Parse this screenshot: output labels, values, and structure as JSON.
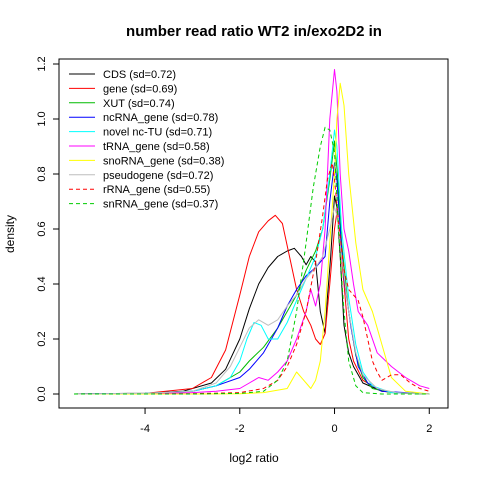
{
  "chart_data": {
    "type": "line",
    "title": "number read ratio WT2 in/exo2D2 in",
    "xlabel": "log2 ratio",
    "ylabel": "density",
    "xlim": [
      -5.5,
      2.1
    ],
    "ylim": [
      0,
      1.22
    ],
    "xticks": [
      -4,
      -2,
      0,
      2
    ],
    "yticks": [
      0.0,
      0.2,
      0.4,
      0.6,
      0.8,
      1.0,
      1.2
    ],
    "xtick_labels": [
      "-4",
      "-2",
      "0",
      "2"
    ],
    "ytick_labels": [
      "0.0",
      "0.2",
      "0.4",
      "0.6",
      "0.8",
      "1.0",
      "1.2"
    ],
    "grid": false,
    "legend_position": "top-left",
    "series": [
      {
        "name": "CDS (sd=0.72)",
        "color": "#000000",
        "dash": "solid",
        "points": [
          [
            -5.5,
            0
          ],
          [
            -4,
            0.003
          ],
          [
            -3.2,
            0.01
          ],
          [
            -2.6,
            0.04
          ],
          [
            -2.3,
            0.09
          ],
          [
            -2.0,
            0.2
          ],
          [
            -1.8,
            0.31
          ],
          [
            -1.6,
            0.4
          ],
          [
            -1.4,
            0.46
          ],
          [
            -1.2,
            0.5
          ],
          [
            -1.0,
            0.52
          ],
          [
            -0.85,
            0.53
          ],
          [
            -0.7,
            0.5
          ],
          [
            -0.6,
            0.47
          ],
          [
            -0.5,
            0.5
          ],
          [
            -0.4,
            0.48
          ],
          [
            -0.3,
            0.3
          ],
          [
            -0.2,
            0.22
          ],
          [
            -0.15,
            0.35
          ],
          [
            -0.08,
            0.5
          ],
          [
            0.0,
            0.72
          ],
          [
            0.05,
            0.68
          ],
          [
            0.12,
            0.5
          ],
          [
            0.2,
            0.25
          ],
          [
            0.3,
            0.15
          ],
          [
            0.4,
            0.1
          ],
          [
            0.6,
            0.04
          ],
          [
            1.0,
            0.01
          ],
          [
            1.5,
            0.003
          ],
          [
            2.0,
            0
          ]
        ]
      },
      {
        "name": "gene (sd=0.69)",
        "color": "#ff0000",
        "dash": "solid",
        "points": [
          [
            -5.5,
            0
          ],
          [
            -4,
            0.002
          ],
          [
            -3,
            0.02
          ],
          [
            -2.6,
            0.06
          ],
          [
            -2.3,
            0.16
          ],
          [
            -2.0,
            0.36
          ],
          [
            -1.8,
            0.5
          ],
          [
            -1.6,
            0.59
          ],
          [
            -1.4,
            0.63
          ],
          [
            -1.25,
            0.65
          ],
          [
            -1.1,
            0.62
          ],
          [
            -0.95,
            0.5
          ],
          [
            -0.8,
            0.38
          ],
          [
            -0.65,
            0.3
          ],
          [
            -0.5,
            0.25
          ],
          [
            -0.4,
            0.2
          ],
          [
            -0.3,
            0.18
          ],
          [
            -0.2,
            0.22
          ],
          [
            -0.1,
            0.4
          ],
          [
            0.0,
            0.6
          ],
          [
            0.05,
            0.66
          ],
          [
            0.12,
            0.55
          ],
          [
            0.2,
            0.4
          ],
          [
            0.3,
            0.2
          ],
          [
            0.4,
            0.12
          ],
          [
            0.6,
            0.05
          ],
          [
            1.0,
            0.01
          ],
          [
            1.5,
            0.003
          ],
          [
            2.0,
            0
          ]
        ]
      },
      {
        "name": "XUT (sd=0.74)",
        "color": "#00bb00",
        "dash": "solid",
        "points": [
          [
            -5.5,
            0
          ],
          [
            -4,
            0.002
          ],
          [
            -3,
            0.01
          ],
          [
            -2.5,
            0.03
          ],
          [
            -2.0,
            0.08
          ],
          [
            -1.8,
            0.12
          ],
          [
            -1.5,
            0.17
          ],
          [
            -1.2,
            0.24
          ],
          [
            -1.0,
            0.3
          ],
          [
            -0.8,
            0.36
          ],
          [
            -0.6,
            0.45
          ],
          [
            -0.4,
            0.52
          ],
          [
            -0.25,
            0.6
          ],
          [
            -0.1,
            0.78
          ],
          [
            0.0,
            0.92
          ],
          [
            0.06,
            0.8
          ],
          [
            0.15,
            0.55
          ],
          [
            0.3,
            0.3
          ],
          [
            0.45,
            0.14
          ],
          [
            0.6,
            0.06
          ],
          [
            0.8,
            0.02
          ],
          [
            1.2,
            0.005
          ],
          [
            2.0,
            0
          ]
        ]
      },
      {
        "name": "ncRNA_gene (sd=0.78)",
        "color": "#0000ff",
        "dash": "solid",
        "points": [
          [
            -5.5,
            0
          ],
          [
            -4,
            0.002
          ],
          [
            -3,
            0.01
          ],
          [
            -2.5,
            0.03
          ],
          [
            -2.0,
            0.06
          ],
          [
            -1.8,
            0.09
          ],
          [
            -1.5,
            0.15
          ],
          [
            -1.2,
            0.24
          ],
          [
            -1.0,
            0.32
          ],
          [
            -0.8,
            0.38
          ],
          [
            -0.6,
            0.43
          ],
          [
            -0.4,
            0.46
          ],
          [
            -0.3,
            0.48
          ],
          [
            -0.2,
            0.5
          ],
          [
            -0.1,
            0.7
          ],
          [
            0.0,
            0.84
          ],
          [
            0.05,
            0.78
          ],
          [
            0.12,
            0.6
          ],
          [
            0.2,
            0.42
          ],
          [
            0.35,
            0.24
          ],
          [
            0.5,
            0.1
          ],
          [
            0.7,
            0.04
          ],
          [
            1.0,
            0.01
          ],
          [
            2.0,
            0
          ]
        ]
      },
      {
        "name": "novel nc-TU (sd=0.71)",
        "color": "#00ffff",
        "dash": "solid",
        "points": [
          [
            -5.5,
            0
          ],
          [
            -4,
            0.002
          ],
          [
            -3,
            0.01
          ],
          [
            -2.5,
            0.03
          ],
          [
            -2.2,
            0.06
          ],
          [
            -2.0,
            0.12
          ],
          [
            -1.85,
            0.2
          ],
          [
            -1.7,
            0.26
          ],
          [
            -1.55,
            0.25
          ],
          [
            -1.4,
            0.2
          ],
          [
            -1.2,
            0.2
          ],
          [
            -1.0,
            0.26
          ],
          [
            -0.8,
            0.34
          ],
          [
            -0.6,
            0.42
          ],
          [
            -0.4,
            0.5
          ],
          [
            -0.25,
            0.6
          ],
          [
            -0.1,
            0.8
          ],
          [
            0.0,
            0.96
          ],
          [
            0.05,
            0.9
          ],
          [
            0.15,
            0.6
          ],
          [
            0.3,
            0.35
          ],
          [
            0.45,
            0.18
          ],
          [
            0.6,
            0.08
          ],
          [
            0.8,
            0.03
          ],
          [
            1.2,
            0.005
          ],
          [
            2.0,
            0
          ]
        ]
      },
      {
        "name": "tRNA_gene (sd=0.58)",
        "color": "#ff00ff",
        "dash": "solid",
        "points": [
          [
            -5.5,
            0
          ],
          [
            -4,
            0.001
          ],
          [
            -3,
            0.005
          ],
          [
            -2.5,
            0.01
          ],
          [
            -2.0,
            0.02
          ],
          [
            -1.8,
            0.04
          ],
          [
            -1.6,
            0.06
          ],
          [
            -1.4,
            0.05
          ],
          [
            -1.2,
            0.08
          ],
          [
            -1.0,
            0.12
          ],
          [
            -0.8,
            0.2
          ],
          [
            -0.6,
            0.3
          ],
          [
            -0.5,
            0.38
          ],
          [
            -0.4,
            0.32
          ],
          [
            -0.3,
            0.4
          ],
          [
            -0.2,
            0.6
          ],
          [
            -0.1,
            1.0
          ],
          [
            0.0,
            1.18
          ],
          [
            0.05,
            1.1
          ],
          [
            0.12,
            0.8
          ],
          [
            0.2,
            0.6
          ],
          [
            0.3,
            0.52
          ],
          [
            0.4,
            0.4
          ],
          [
            0.5,
            0.3
          ],
          [
            0.7,
            0.25
          ],
          [
            0.9,
            0.15
          ],
          [
            1.2,
            0.1
          ],
          [
            1.5,
            0.06
          ],
          [
            1.8,
            0.03
          ],
          [
            2.0,
            0.02
          ]
        ]
      },
      {
        "name": "snoRNA_gene (sd=0.38)",
        "color": "#ffff00",
        "dash": "solid",
        "points": [
          [
            -5.5,
            0
          ],
          [
            -4,
            0
          ],
          [
            -3,
            0
          ],
          [
            -2,
            0.001
          ],
          [
            -1.5,
            0.005
          ],
          [
            -1.0,
            0.02
          ],
          [
            -0.8,
            0.08
          ],
          [
            -0.6,
            0.04
          ],
          [
            -0.5,
            0.02
          ],
          [
            -0.4,
            0.05
          ],
          [
            -0.3,
            0.12
          ],
          [
            -0.2,
            0.3
          ],
          [
            -0.1,
            0.55
          ],
          [
            0.0,
            0.8
          ],
          [
            0.05,
            1.0
          ],
          [
            0.12,
            1.13
          ],
          [
            0.2,
            1.05
          ],
          [
            0.3,
            0.8
          ],
          [
            0.45,
            0.55
          ],
          [
            0.6,
            0.38
          ],
          [
            0.8,
            0.3
          ],
          [
            1.0,
            0.18
          ],
          [
            1.2,
            0.06
          ],
          [
            1.5,
            0.01
          ],
          [
            2.0,
            0
          ]
        ]
      },
      {
        "name": "pseudogene (sd=0.72)",
        "color": "#bebebe",
        "dash": "solid",
        "points": [
          [
            -5.5,
            0
          ],
          [
            -4,
            0.002
          ],
          [
            -3,
            0.01
          ],
          [
            -2.5,
            0.04
          ],
          [
            -2.2,
            0.1
          ],
          [
            -2.0,
            0.17
          ],
          [
            -1.8,
            0.24
          ],
          [
            -1.6,
            0.27
          ],
          [
            -1.4,
            0.25
          ],
          [
            -1.2,
            0.27
          ],
          [
            -1.0,
            0.32
          ],
          [
            -0.8,
            0.36
          ],
          [
            -0.6,
            0.42
          ],
          [
            -0.4,
            0.46
          ],
          [
            -0.25,
            0.5
          ],
          [
            -0.1,
            0.6
          ],
          [
            0.0,
            0.68
          ],
          [
            0.05,
            0.65
          ],
          [
            0.15,
            0.5
          ],
          [
            0.3,
            0.3
          ],
          [
            0.45,
            0.15
          ],
          [
            0.6,
            0.07
          ],
          [
            0.9,
            0.02
          ],
          [
            1.3,
            0.005
          ],
          [
            2.0,
            0
          ]
        ]
      },
      {
        "name": "rRNA_gene (sd=0.55)",
        "color": "#ff0000",
        "dash": "dashed",
        "points": [
          [
            -5.5,
            0
          ],
          [
            -4,
            0
          ],
          [
            -3,
            0.001
          ],
          [
            -2.0,
            0.005
          ],
          [
            -1.5,
            0.02
          ],
          [
            -1.2,
            0.05
          ],
          [
            -1.0,
            0.1
          ],
          [
            -0.8,
            0.18
          ],
          [
            -0.6,
            0.3
          ],
          [
            -0.4,
            0.48
          ],
          [
            -0.25,
            0.65
          ],
          [
            -0.15,
            0.78
          ],
          [
            -0.05,
            0.84
          ],
          [
            0.0,
            0.78
          ],
          [
            0.1,
            0.6
          ],
          [
            0.2,
            0.45
          ],
          [
            0.3,
            0.38
          ],
          [
            0.4,
            0.36
          ],
          [
            0.5,
            0.34
          ],
          [
            0.6,
            0.28
          ],
          [
            0.7,
            0.2
          ],
          [
            0.8,
            0.12
          ],
          [
            0.9,
            0.08
          ],
          [
            1.0,
            0.05
          ],
          [
            1.2,
            0.07
          ],
          [
            1.4,
            0.07
          ],
          [
            1.6,
            0.04
          ],
          [
            1.8,
            0.02
          ],
          [
            2.0,
            0.01
          ]
        ]
      },
      {
        "name": "snRNA_gene (sd=0.37)",
        "color": "#00cc00",
        "dash": "dashed",
        "points": [
          [
            -5.5,
            0
          ],
          [
            -4,
            0
          ],
          [
            -3,
            0
          ],
          [
            -2.0,
            0.002
          ],
          [
            -1.5,
            0.01
          ],
          [
            -1.2,
            0.05
          ],
          [
            -1.0,
            0.12
          ],
          [
            -0.8,
            0.3
          ],
          [
            -0.6,
            0.55
          ],
          [
            -0.45,
            0.75
          ],
          [
            -0.3,
            0.9
          ],
          [
            -0.2,
            0.97
          ],
          [
            -0.1,
            0.96
          ],
          [
            0.0,
            0.88
          ],
          [
            0.1,
            0.55
          ],
          [
            0.2,
            0.3
          ],
          [
            0.3,
            0.12
          ],
          [
            0.45,
            0.03
          ],
          [
            0.6,
            0.005
          ],
          [
            1.0,
            0
          ],
          [
            2.0,
            0
          ]
        ]
      }
    ]
  }
}
